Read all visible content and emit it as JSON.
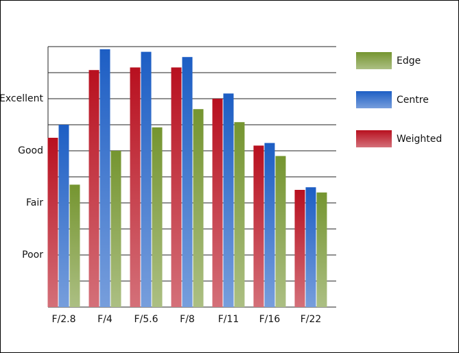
{
  "chart_data": {
    "type": "bar",
    "categories": [
      "F/2.8",
      "F/4",
      "F/5.6",
      "F/8",
      "F/11",
      "F/16",
      "F/22"
    ],
    "series": [
      {
        "name": "Weighted",
        "color": "#b8101f",
        "values": [
          6.5,
          9.1,
          9.2,
          9.2,
          8.0,
          6.2,
          4.5
        ]
      },
      {
        "name": "Centre",
        "color": "#1d5ec4",
        "values": [
          7.0,
          9.9,
          9.8,
          9.6,
          8.2,
          6.3,
          4.6
        ]
      },
      {
        "name": "Edge",
        "color": "#759530",
        "values": [
          4.7,
          6.0,
          6.9,
          7.6,
          7.1,
          5.8,
          4.4
        ]
      }
    ],
    "ylim": [
      0,
      10
    ],
    "yticks": [
      {
        "value": 2,
        "label": "Poor"
      },
      {
        "value": 4,
        "label": "Fair"
      },
      {
        "value": 6,
        "label": "Good"
      },
      {
        "value": 8,
        "label": "Excellent"
      }
    ],
    "minor_yticks": [
      1,
      3,
      5,
      7,
      9,
      10
    ],
    "grid": true,
    "legend": "right"
  }
}
